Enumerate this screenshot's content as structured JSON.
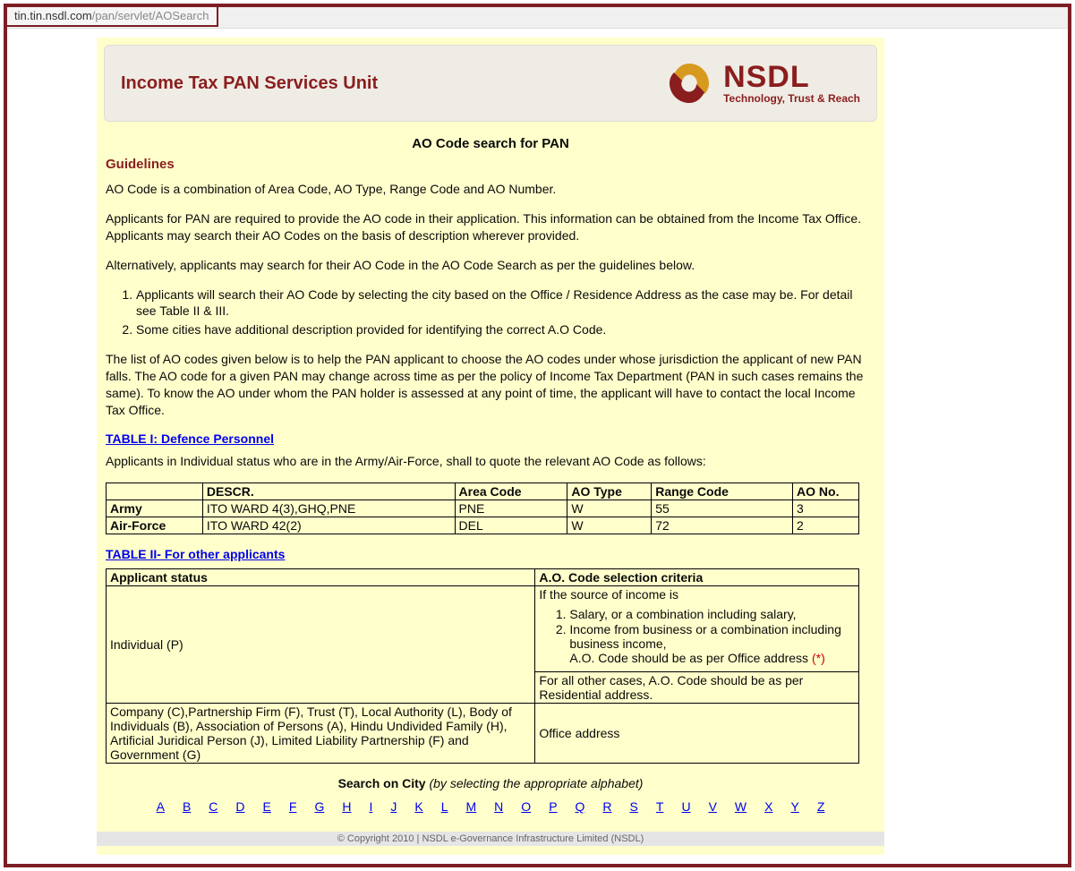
{
  "url": {
    "host": "tin.tin.nsdl.com",
    "path": "/pan/servlet/AOSearch"
  },
  "header": {
    "title": "Income Tax PAN Services Unit",
    "logo_main": "NSDL",
    "logo_tagline": "Technology, Trust & Reach"
  },
  "content": {
    "page_heading": "AO Code search for PAN",
    "guidelines_label": "Guidelines",
    "p1": "AO Code is a combination of Area Code, AO Type, Range Code and AO Number.",
    "p2": "Applicants for PAN are required to provide the AO code in their application. This information can be obtained from the Income Tax Office. Applicants may search their AO Codes on the basis of description wherever provided.",
    "p3": "Alternatively, applicants may search for their AO Code in the AO Code Search as per the guidelines below.",
    "guide_list": [
      "Applicants will search their AO Code by selecting the city based on the Office / Residence Address as the case may be. For detail see Table II & III.",
      "Some cities have additional description provided for identifying the correct A.O Code."
    ],
    "p4": "The list of AO codes given below is to help the PAN applicant to choose the AO codes under whose jurisdiction the applicant of new PAN falls. The AO code for a given PAN may change across time as per the policy of Income Tax Department (PAN in such cases remains the same). To know the AO under whom the PAN holder is assessed at any point of time, the applicant will have to contact the local Income Tax Office.",
    "table1_link": "TABLE I: Defence Personnel",
    "table1_intro": "Applicants in Individual status who are in the Army/Air-Force, shall to quote the relevant AO Code as follows:",
    "table1": {
      "headers": [
        "",
        "DESCR.",
        "Area Code",
        "AO Type",
        "Range Code",
        "AO No."
      ],
      "rows": [
        [
          "Army",
          "ITO WARD 4(3),GHQ,PNE",
          "PNE",
          "W",
          "55",
          "3"
        ],
        [
          "Air-Force",
          "ITO WARD 42(2)",
          "DEL",
          "W",
          "72",
          "2"
        ]
      ]
    },
    "table2_link": "TABLE II- For other applicants",
    "table2": {
      "headers": [
        "Applicant status",
        "A.O. Code selection criteria"
      ],
      "r1c1": "Individual (P)",
      "r1c2_lead": "If the source of income is",
      "r1c2_list": [
        "Salary, or a combination including salary,",
        "Income from business or a combination including business income,"
      ],
      "r1c2_tail": "A.O. Code should be as per Office address ",
      "r1c2_star": "(*)",
      "r1c2b": "For all other cases, A.O. Code should be as per Residential address.",
      "r2c1": "Company (C),Partnership Firm (F), Trust (T), Local Authority (L), Body of Individuals (B), Association of Persons (A), Hindu Undivided Family (H), Artificial Juridical Person (J), Limited Liability Partnership (F) and Government (G)",
      "r2c2": "Office address"
    },
    "search_label_bold": "Search on City ",
    "search_label_italic": "(by selecting the appropriate alphabet)",
    "alphabet": [
      "A",
      "B",
      "C",
      "D",
      "E",
      "F",
      "G",
      "H",
      "I",
      "J",
      "K",
      "L",
      "M",
      "N",
      "O",
      "P",
      "Q",
      "R",
      "S",
      "T",
      "U",
      "V",
      "W",
      "X",
      "Y",
      "Z"
    ]
  },
  "footer": "© Copyright 2010  |  NSDL e-Governance Infrastructure Limited (NSDL)"
}
